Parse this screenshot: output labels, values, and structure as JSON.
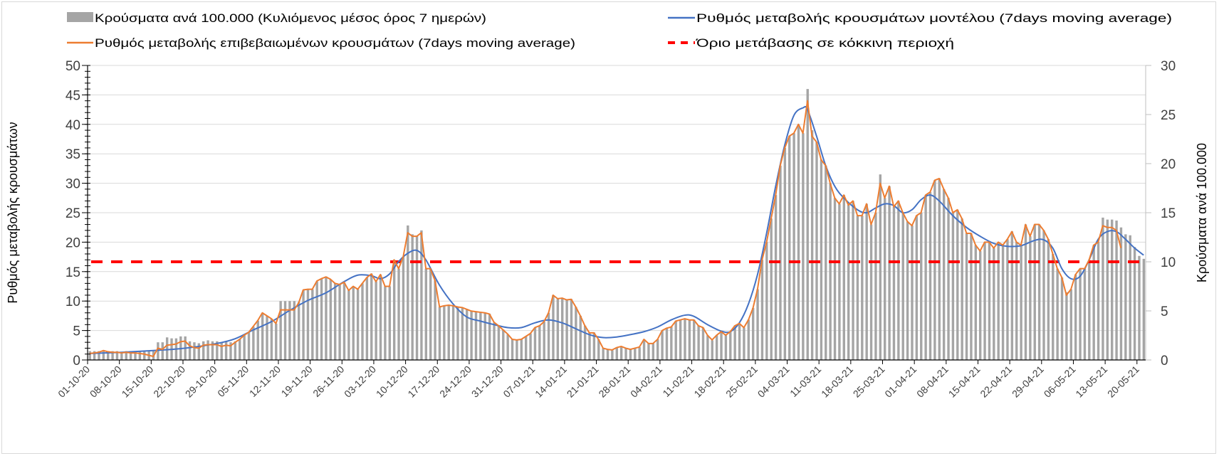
{
  "chart_data": {
    "type": "bar+line",
    "legend": {
      "placement": "top",
      "items": [
        {
          "label": "Κρούσματα ανά 100.000 (Κυλιόμενος μέσος όρος 7 ημερών)",
          "kind": "bar",
          "color": "#a5a5a5"
        },
        {
          "label": "Ρυθμός μεταβολής κρουσμάτων μοντέλου (7days moving average)",
          "kind": "line",
          "color": "#4472c4"
        },
        {
          "label": "Ρυθμός μεταβολής επιβεβαιωμένων κρουσμάτων (7days moving average)",
          "kind": "line",
          "color": "#ed7d31"
        },
        {
          "label": "Όριο μετάβασης σε κόκκινη περιοχή",
          "kind": "dashed-line",
          "color": "#ff0000"
        }
      ]
    },
    "y_left": {
      "label": "Ρυθμός μεταβολής κρουσμάτων",
      "range": [
        0,
        50
      ],
      "ticks": [
        "0",
        "5",
        "10",
        "15",
        "20",
        "25",
        "30",
        "35",
        "40",
        "45",
        "50"
      ]
    },
    "y_right": {
      "label": "Κρούσματα ανά 100.000",
      "range": [
        0,
        30
      ],
      "ticks": [
        "0",
        "5",
        "10",
        "15",
        "20",
        "25",
        "30"
      ]
    },
    "x": {
      "start_date": "01-10-20",
      "unit": "day",
      "tick_step_days": 7,
      "tick_labels": [
        "01-10-20",
        "08-10-20",
        "15-10-20",
        "22-10-20",
        "29-10-20",
        "05-11-20",
        "12-11-20",
        "19-11-20",
        "26-11-20",
        "03-12-20",
        "10-12-20",
        "17-12-20",
        "24-12-20",
        "31-12-20",
        "07-01-21",
        "14-01-21",
        "21-01-21",
        "28-01-21",
        "04-02-21",
        "11-02-21",
        "18-02-21",
        "25-02-21",
        "04-03-21",
        "11-03-21",
        "18-03-21",
        "25-03-21",
        "01-04-21",
        "08-04-21",
        "15-04-21",
        "22-04-21",
        "29-04-21",
        "06-05-21",
        "13-05-21",
        "20-05-21"
      ]
    },
    "grid": true,
    "threshold": {
      "axis": "right",
      "value": 10
    },
    "series": [
      {
        "name": "cases_per_100k",
        "axis": "right",
        "type": "bar",
        "color": "#a5a5a5",
        "values": [
          0.9,
          0.9,
          0.9,
          1.0,
          0.9,
          0.9,
          0.9,
          0.8,
          0.9,
          0.9,
          0.9,
          0.9,
          0.9,
          0.9,
          0.9,
          1.8,
          1.8,
          2.3,
          2.2,
          2.2,
          2.4,
          2.4,
          1.9,
          1.8,
          1.7,
          1.9,
          2.0,
          1.9,
          1.9,
          1.8,
          1.9,
          1.8,
          1.9,
          2.1,
          2.5,
          2.8,
          3.4,
          4.0,
          4.8,
          4.5,
          4.2,
          3.7,
          6.0,
          6.0,
          6.0,
          6.0,
          5.9,
          7.1,
          7.2,
          7.2,
          8.0,
          8.3,
          8.5,
          8.2,
          7.8,
          7.7,
          7.9,
          7.1,
          7.5,
          7.2,
          7.8,
          8.4,
          8.8,
          8.0,
          8.7,
          7.5,
          7.5,
          10.2,
          9.3,
          10.5,
          13.7,
          12.8,
          12.6,
          13.2,
          9.3,
          9.3,
          8.1,
          5.4,
          5.5,
          5.6,
          5.5,
          5.4,
          5.3,
          5.2,
          5.0,
          4.9,
          4.9,
          4.8,
          4.7,
          3.8,
          3.5,
          3.1,
          2.6,
          2.1,
          2.0,
          2.1,
          2.4,
          2.7,
          3.3,
          3.5,
          3.9,
          4.8,
          6.6,
          6.2,
          6.3,
          6.1,
          6.2,
          5.4,
          4.5,
          3.5,
          2.8,
          2.8,
          2.1,
          1.2,
          1.1,
          1.0,
          1.3,
          1.4,
          1.2,
          1.1,
          1.2,
          1.3,
          2.1,
          1.7,
          1.7,
          2.1,
          3.0,
          3.2,
          3.4,
          4.0,
          4.1,
          4.2,
          4.1,
          4.1,
          3.5,
          3.3,
          2.5,
          2.0,
          2.5,
          2.9,
          2.5,
          2.9,
          3.5,
          3.7,
          3.3,
          4.1,
          5.3,
          7.2,
          10.2,
          12.0,
          14.4,
          16.8,
          19.8,
          21.6,
          22.8,
          23.1,
          24.0,
          23.1,
          27.6,
          23.4,
          22.2,
          20.4,
          19.8,
          18.0,
          16.5,
          15.9,
          16.8,
          15.8,
          16.2,
          14.7,
          14.7,
          15.9,
          13.8,
          15.0,
          18.9,
          16.5,
          17.7,
          15.6,
          16.2,
          15.0,
          14.1,
          13.7,
          14.7,
          15.0,
          16.8,
          17.1,
          18.3,
          18.5,
          17.4,
          16.5,
          15.0,
          15.3,
          14.4,
          12.9,
          12.9,
          11.7,
          11.1,
          12.0,
          12.0,
          11.4,
          12.0,
          11.7,
          12.3,
          13.1,
          12.0,
          11.7,
          13.8,
          12.6,
          13.8,
          13.8,
          13.2,
          12.3,
          10.8,
          9.3,
          8.4,
          6.9,
          7.2,
          8.7,
          9.3,
          9.3,
          10.2,
          11.7,
          12.0,
          14.5,
          14.3,
          14.3,
          14.2,
          13.5,
          12.8,
          12.7,
          11.5,
          10.6,
          10.3
        ]
      },
      {
        "name": "confirmed_rate",
        "axis": "left",
        "type": "line",
        "color": "#ed7d31",
        "values": [
          1.1,
          1.2,
          1.3,
          1.6,
          1.4,
          1.3,
          1.3,
          1.2,
          1.3,
          1.2,
          1.2,
          1.1,
          1.0,
          0.8,
          0.6,
          2.0,
          1.8,
          2.5,
          2.6,
          2.7,
          3.1,
          3.2,
          2.4,
          2.1,
          2.0,
          2.5,
          2.6,
          2.6,
          2.6,
          2.3,
          2.5,
          2.4,
          3.0,
          3.5,
          4.2,
          4.7,
          5.7,
          6.7,
          8.0,
          7.5,
          7.0,
          6.2,
          8.5,
          8.5,
          8.5,
          8.5,
          9.7,
          11.9,
          12.0,
          12.0,
          13.4,
          13.8,
          14.1,
          13.7,
          13.0,
          12.8,
          13.2,
          11.8,
          12.5,
          12.0,
          13.0,
          14.0,
          14.6,
          13.3,
          14.5,
          12.5,
          12.5,
          17.0,
          15.5,
          17.5,
          21.6,
          21.0,
          21.0,
          21.6,
          15.5,
          15.5,
          13.5,
          9.0,
          9.2,
          9.3,
          9.2,
          9.0,
          8.9,
          8.6,
          8.3,
          8.2,
          8.1,
          8.0,
          7.8,
          6.4,
          5.8,
          5.1,
          4.4,
          3.5,
          3.4,
          3.5,
          4.0,
          4.5,
          5.5,
          5.8,
          6.5,
          8.0,
          11.0,
          10.4,
          10.5,
          10.2,
          10.3,
          9.0,
          7.5,
          5.8,
          4.6,
          4.6,
          3.5,
          2.0,
          1.8,
          1.7,
          2.1,
          2.3,
          2.0,
          1.8,
          2.0,
          2.2,
          3.5,
          2.8,
          2.8,
          3.5,
          5.0,
          5.4,
          5.6,
          6.6,
          6.8,
          7.0,
          6.8,
          6.8,
          5.8,
          5.5,
          4.2,
          3.4,
          4.2,
          4.8,
          4.2,
          4.8,
          5.8,
          6.2,
          5.5,
          6.8,
          8.8,
          12,
          17,
          20,
          24,
          28,
          33,
          36,
          38,
          38.5,
          40,
          38.5,
          44,
          38,
          37,
          34,
          33,
          30,
          27.5,
          26.5,
          28,
          26.3,
          27,
          24.5,
          24.5,
          26.5,
          23,
          25,
          30,
          27.5,
          29.5,
          26,
          27,
          25,
          23.5,
          22.8,
          24.5,
          25,
          28,
          28.5,
          30.5,
          30.8,
          29,
          27.5,
          25,
          25.5,
          24,
          21.5,
          21.5,
          19.5,
          18.5,
          20,
          20,
          19,
          20,
          19.5,
          20.5,
          21.8,
          20,
          19.5,
          23,
          21,
          23,
          23,
          22,
          20.5,
          18,
          15.5,
          14,
          11,
          12,
          14.5,
          15.5,
          15.5,
          17,
          19.5,
          20,
          22.8,
          22.5,
          22.5,
          22,
          19
        ]
      },
      {
        "name": "model_rate",
        "axis": "left",
        "type": "line",
        "color": "#4472c4",
        "x": [
          0,
          7,
          14,
          21,
          28,
          32,
          36,
          40,
          44,
          48,
          52,
          56,
          59,
          62,
          64,
          66,
          68,
          70,
          72,
          74,
          77,
          80,
          83,
          86,
          89,
          92,
          95,
          98,
          101,
          104,
          107,
          110,
          113,
          116,
          119,
          122,
          125,
          128,
          131,
          133,
          136,
          139,
          141,
          143,
          145,
          147,
          149,
          151,
          153,
          155,
          157,
          158,
          160,
          162,
          164,
          166,
          169,
          171,
          173,
          175,
          177,
          179,
          181,
          183,
          185,
          187,
          190,
          193,
          196,
          199,
          202,
          205,
          208,
          210,
          212,
          214,
          216,
          218,
          220,
          222,
          224,
          226,
          228,
          230,
          232
        ],
        "values": [
          1.1,
          1.3,
          1.6,
          2.0,
          2.8,
          3.6,
          5.1,
          6.5,
          8.4,
          10.1,
          11.4,
          13.3,
          14.4,
          14.3,
          13.8,
          14.6,
          16.7,
          18.1,
          18.6,
          17.0,
          12.7,
          9.5,
          7.3,
          6.6,
          6.0,
          5.5,
          5.5,
          6.3,
          6.8,
          6.3,
          5.3,
          4.3,
          3.8,
          3.9,
          4.3,
          4.8,
          5.6,
          6.8,
          7.6,
          7.4,
          6.0,
          4.9,
          4.8,
          6.3,
          9.5,
          14.5,
          21.5,
          29.5,
          36.5,
          41.5,
          42.8,
          42.5,
          38,
          33,
          29.5,
          27.5,
          25.5,
          25,
          25.8,
          26.5,
          26.2,
          25,
          25.5,
          27.2,
          28,
          27,
          24.5,
          22.5,
          21,
          19.8,
          19.3,
          19.4,
          20.3,
          20.4,
          19,
          15.5,
          13.8,
          14.2,
          17,
          20.5,
          21.8,
          21.8,
          20.5,
          19,
          17.8
        ]
      }
    ]
  }
}
